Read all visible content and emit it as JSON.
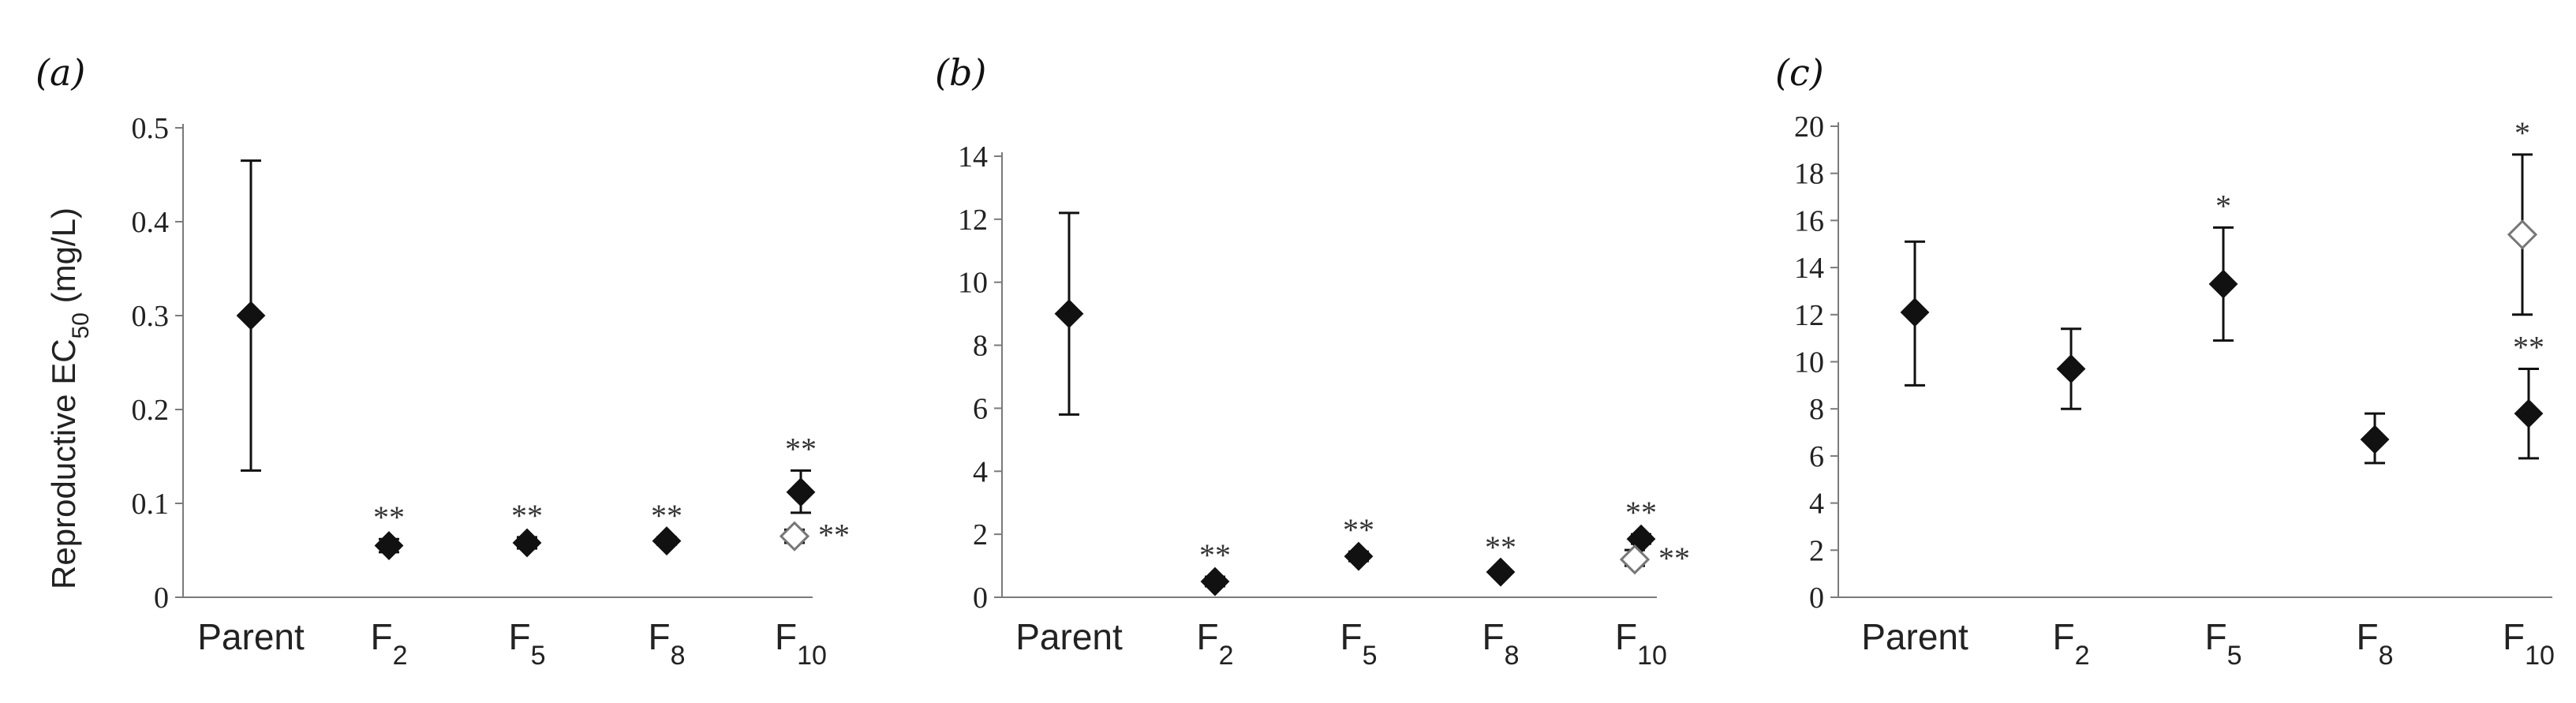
{
  "y_axis_label": {
    "main": "Reproductive EC",
    "sub": "50",
    "unit": " (mg/L)"
  },
  "chart_data": [
    {
      "type": "scatter",
      "panel": "(a)",
      "categories": [
        {
          "base": "Parent",
          "sub": ""
        },
        {
          "base": "F",
          "sub": "2"
        },
        {
          "base": "F",
          "sub": "5"
        },
        {
          "base": "F",
          "sub": "8"
        },
        {
          "base": "F",
          "sub": "10"
        }
      ],
      "ylim": [
        0,
        0.5
      ],
      "yticks": [
        0,
        0.1,
        0.2,
        0.3,
        0.4,
        0.5
      ],
      "ytick_labels": [
        "0",
        "0.1",
        "0.2",
        "0.3",
        "0.4",
        "0.5"
      ],
      "series": [
        {
          "style": "filled",
          "points": [
            {
              "x": 0,
              "y": 0.3,
              "lo": 0.135,
              "hi": 0.465
            },
            {
              "x": 1,
              "y": 0.055,
              "lo": 0.048,
              "hi": 0.062,
              "sig": "**"
            },
            {
              "x": 2,
              "y": 0.058,
              "lo": 0.052,
              "hi": 0.064,
              "sig": "**"
            },
            {
              "x": 3,
              "y": 0.06,
              "lo": 0.056,
              "hi": 0.064,
              "sig": "**"
            },
            {
              "x": 4,
              "y": 0.112,
              "lo": 0.09,
              "hi": 0.135,
              "sig": "**"
            }
          ]
        },
        {
          "style": "open",
          "points": [
            {
              "x": 4,
              "y": 0.065,
              "lo": 0.058,
              "hi": 0.072,
              "sig": "**"
            }
          ]
        }
      ]
    },
    {
      "type": "scatter",
      "panel": "(b)",
      "categories": [
        {
          "base": "Parent",
          "sub": ""
        },
        {
          "base": "F",
          "sub": "2"
        },
        {
          "base": "F",
          "sub": "5"
        },
        {
          "base": "F",
          "sub": "8"
        },
        {
          "base": "F",
          "sub": "10"
        }
      ],
      "ylim": [
        0,
        14
      ],
      "yticks": [
        0,
        2,
        4,
        6,
        8,
        10,
        12,
        14
      ],
      "ytick_labels": [
        "0",
        "2",
        "4",
        "6",
        "8",
        "10",
        "12",
        "14"
      ],
      "series": [
        {
          "style": "filled",
          "points": [
            {
              "x": 0,
              "y": 9.0,
              "lo": 5.8,
              "hi": 12.2
            },
            {
              "x": 1,
              "y": 0.5,
              "lo": 0.35,
              "hi": 0.65,
              "sig": "**"
            },
            {
              "x": 2,
              "y": 1.3,
              "lo": 1.15,
              "hi": 1.45,
              "sig": "**"
            },
            {
              "x": 3,
              "y": 0.8,
              "lo": 0.7,
              "hi": 0.9,
              "sig": "**"
            },
            {
              "x": 4,
              "y": 1.85,
              "lo": 1.7,
              "hi": 2.0,
              "sig": "**"
            }
          ]
        },
        {
          "style": "open",
          "points": [
            {
              "x": 4,
              "y": 1.2,
              "lo": 1.0,
              "hi": 1.5,
              "sig": "**"
            }
          ]
        }
      ]
    },
    {
      "type": "scatter",
      "panel": "(c)",
      "categories": [
        {
          "base": "Parent",
          "sub": ""
        },
        {
          "base": "F",
          "sub": "2"
        },
        {
          "base": "F",
          "sub": "5"
        },
        {
          "base": "F",
          "sub": "8"
        },
        {
          "base": "F",
          "sub": "10"
        }
      ],
      "ylim": [
        0,
        20
      ],
      "yticks": [
        0,
        2,
        4,
        6,
        8,
        10,
        12,
        14,
        16,
        18,
        20
      ],
      "ytick_labels": [
        "0",
        "2",
        "4",
        "6",
        "8",
        "10",
        "12",
        "14",
        "16",
        "18",
        "20"
      ],
      "series": [
        {
          "style": "filled",
          "points": [
            {
              "x": 0,
              "y": 12.1,
              "lo": 9.0,
              "hi": 15.1
            },
            {
              "x": 1,
              "y": 9.7,
              "lo": 8.0,
              "hi": 11.4
            },
            {
              "x": 2,
              "y": 13.3,
              "lo": 10.9,
              "hi": 15.7,
              "sig": "*"
            },
            {
              "x": 3,
              "y": 6.7,
              "lo": 5.7,
              "hi": 7.8
            },
            {
              "x": 4,
              "y": 7.8,
              "lo": 5.9,
              "hi": 9.7,
              "sig": "**"
            }
          ]
        },
        {
          "style": "open",
          "points": [
            {
              "x": 4,
              "y": 15.4,
              "lo": 12.0,
              "hi": 18.8,
              "sig": "*"
            }
          ]
        }
      ]
    }
  ]
}
